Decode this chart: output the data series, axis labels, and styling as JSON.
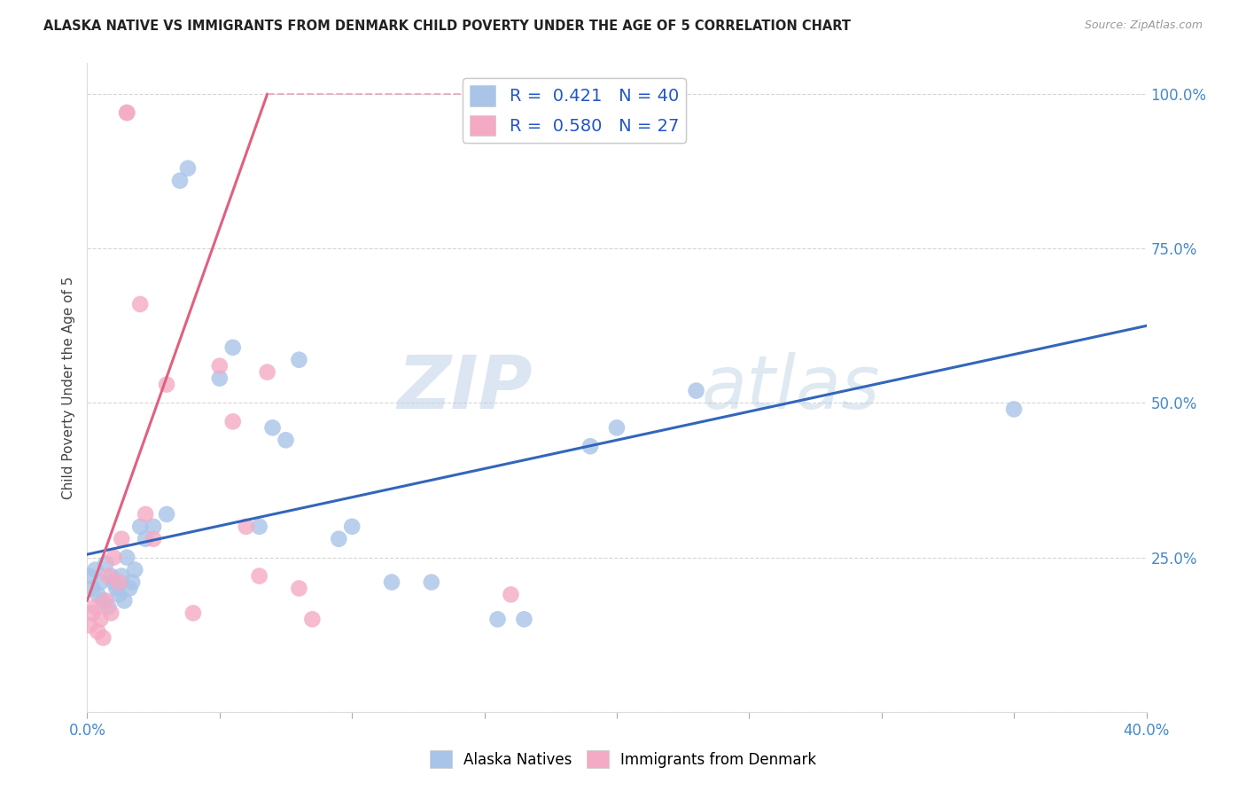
{
  "title": "ALASKA NATIVE VS IMMIGRANTS FROM DENMARK CHILD POVERTY UNDER THE AGE OF 5 CORRELATION CHART",
  "source": "Source: ZipAtlas.com",
  "ylabel": "Child Poverty Under the Age of 5",
  "xlim": [
    0.0,
    0.4
  ],
  "ylim": [
    0.0,
    1.05
  ],
  "x_ticks": [
    0.0,
    0.05,
    0.1,
    0.15,
    0.2,
    0.25,
    0.3,
    0.35,
    0.4
  ],
  "y_ticks": [
    0.0,
    0.25,
    0.5,
    0.75,
    1.0
  ],
  "y_tick_labels": [
    "",
    "25.0%",
    "50.0%",
    "75.0%",
    "100.0%"
  ],
  "watermark_zip": "ZIP",
  "watermark_atlas": "atlas",
  "legend_R_blue": "0.421",
  "legend_N_blue": "40",
  "legend_R_pink": "0.580",
  "legend_N_pink": "27",
  "blue_color": "#a8c4e8",
  "pink_color": "#f4aac4",
  "line_blue_color": "#3366bb",
  "line_pink_color": "#e06080",
  "line_pink_dash_color": "#e8a0b8",
  "blue_scatter_x": [
    0.001,
    0.002,
    0.003,
    0.004,
    0.005,
    0.006,
    0.007,
    0.008,
    0.009,
    0.01,
    0.011,
    0.012,
    0.013,
    0.014,
    0.015,
    0.016,
    0.017,
    0.018,
    0.02,
    0.022,
    0.025,
    0.03,
    0.035,
    0.038,
    0.05,
    0.055,
    0.065,
    0.07,
    0.075,
    0.08,
    0.095,
    0.1,
    0.115,
    0.13,
    0.155,
    0.165,
    0.19,
    0.2,
    0.23,
    0.35
  ],
  "blue_scatter_y": [
    0.22,
    0.2,
    0.23,
    0.19,
    0.21,
    0.18,
    0.24,
    0.17,
    0.22,
    0.21,
    0.2,
    0.19,
    0.22,
    0.18,
    0.25,
    0.2,
    0.21,
    0.23,
    0.3,
    0.28,
    0.3,
    0.32,
    0.86,
    0.88,
    0.54,
    0.59,
    0.3,
    0.46,
    0.44,
    0.57,
    0.28,
    0.3,
    0.21,
    0.21,
    0.15,
    0.15,
    0.43,
    0.46,
    0.52,
    0.49
  ],
  "pink_scatter_x": [
    0.001,
    0.002,
    0.003,
    0.004,
    0.005,
    0.006,
    0.007,
    0.008,
    0.009,
    0.01,
    0.012,
    0.013,
    0.015,
    0.015,
    0.02,
    0.022,
    0.025,
    0.03,
    0.04,
    0.05,
    0.055,
    0.06,
    0.065,
    0.068,
    0.08,
    0.085,
    0.16
  ],
  "pink_scatter_y": [
    0.14,
    0.16,
    0.17,
    0.13,
    0.15,
    0.12,
    0.18,
    0.22,
    0.16,
    0.25,
    0.21,
    0.28,
    0.97,
    0.97,
    0.66,
    0.32,
    0.28,
    0.53,
    0.16,
    0.56,
    0.47,
    0.3,
    0.22,
    0.55,
    0.2,
    0.15,
    0.19
  ],
  "blue_line_x": [
    0.0,
    0.4
  ],
  "blue_line_y": [
    0.255,
    0.625
  ],
  "pink_line_x": [
    0.0,
    0.068
  ],
  "pink_line_y": [
    0.18,
    1.0
  ],
  "pink_dash_line_x": [
    0.068,
    0.155
  ],
  "pink_dash_line_y": [
    1.0,
    1.0
  ]
}
